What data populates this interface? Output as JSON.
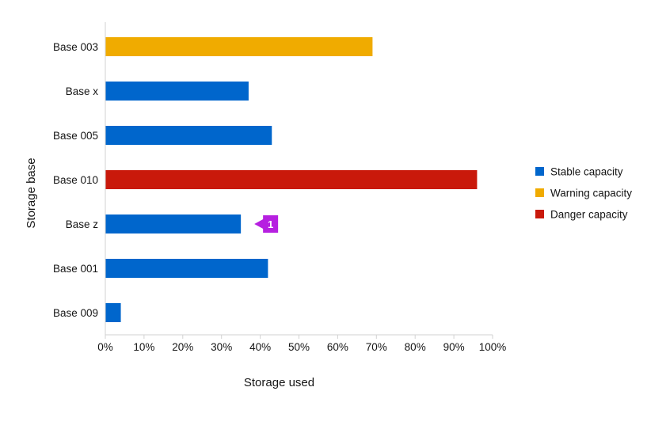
{
  "chart_data": {
    "type": "bar",
    "orientation": "horizontal",
    "title": "",
    "xlabel": "Storage used",
    "ylabel": "Storage base",
    "xlim": [
      0,
      100
    ],
    "x_ticks": [
      "0%",
      "10%",
      "20%",
      "30%",
      "40%",
      "50%",
      "60%",
      "70%",
      "80%",
      "90%",
      "100%"
    ],
    "categories": [
      "Base 003",
      "Base x",
      "Base 005",
      "Base 010",
      "Base z",
      "Base 001",
      "Base 009"
    ],
    "values": [
      69,
      37,
      43,
      96,
      35,
      42,
      4
    ],
    "status": [
      "warning",
      "stable",
      "stable",
      "danger",
      "stable",
      "stable",
      "stable"
    ],
    "legend_position": "right",
    "legend": [
      {
        "key": "stable",
        "label": "Stable capacity",
        "color": "#0066cc"
      },
      {
        "key": "warning",
        "label": "Warning capacity",
        "color": "#f0ab00"
      },
      {
        "key": "danger",
        "label": "Danger capacity",
        "color": "#c9190b"
      }
    ],
    "annotation": {
      "category": "Base z",
      "label": "1",
      "color": "#b620e0"
    },
    "axis_color": "#d2d2d2"
  }
}
